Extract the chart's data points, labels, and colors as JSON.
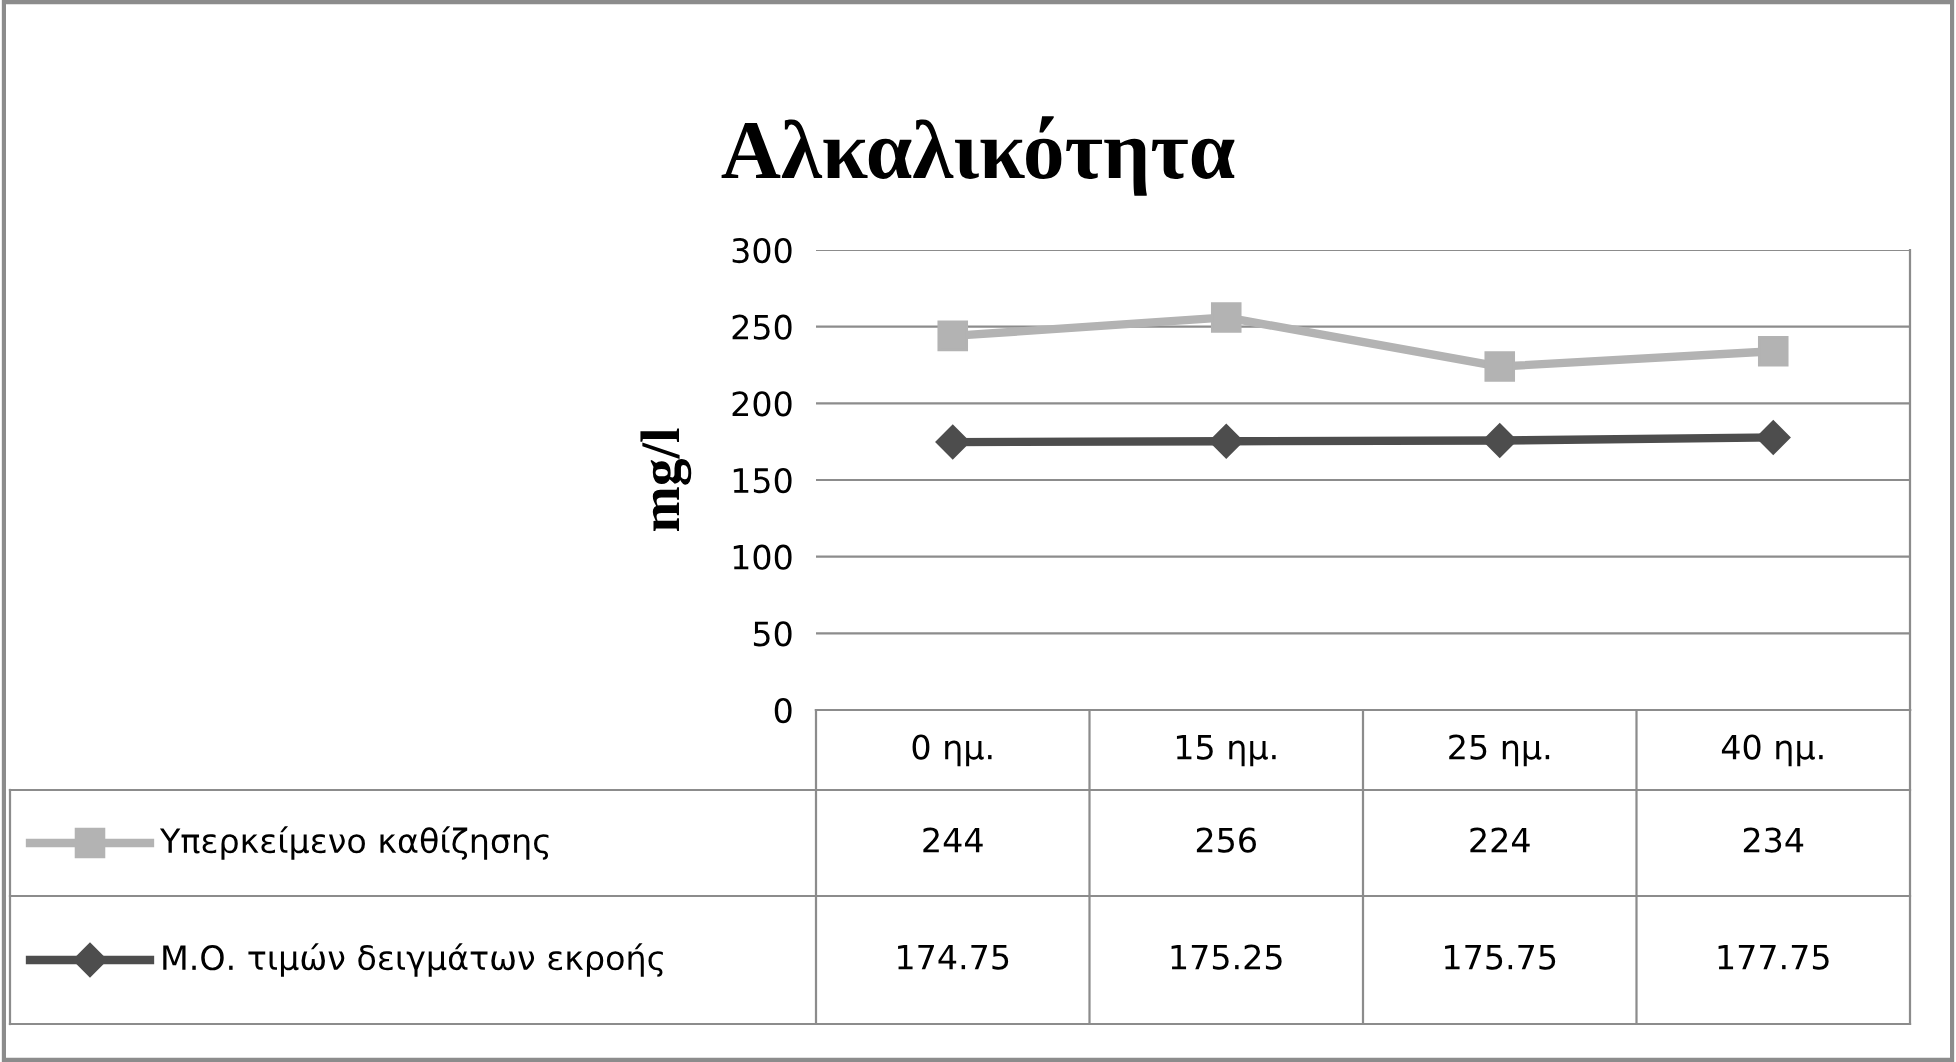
{
  "chart_data": {
    "type": "line",
    "title": "Αλκαλικότητα",
    "ylabel": "mg/l",
    "categories": [
      "0 ημ.",
      "15 ημ.",
      "25 ημ.",
      "40 ημ."
    ],
    "series": [
      {
        "name": "Υπερκείμενο καθίζησης",
        "color": "#b3b3b3",
        "marker": "square",
        "values": [
          244,
          256,
          224,
          234
        ]
      },
      {
        "name": "Μ.Ο. τιμών δειγμάτων εκροής",
        "color": "#4d4d4d",
        "marker": "diamond",
        "values": [
          174.75,
          175.25,
          175.75,
          177.75
        ]
      }
    ],
    "ylim": [
      0,
      300
    ],
    "yticks": [
      0,
      50,
      100,
      150,
      200,
      250,
      300
    ],
    "grid": "y",
    "legend": "bottom",
    "data_labels": true
  }
}
